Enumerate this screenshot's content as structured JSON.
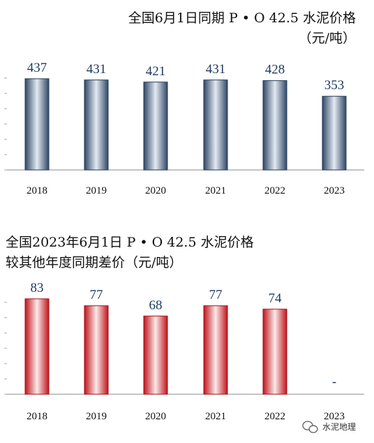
{
  "chart_data": [
    {
      "type": "bar",
      "title": "全国6月1日同期 P • O 42.5 水泥价格",
      "subtitle": "（元/吨）",
      "categories": [
        "2018",
        "2019",
        "2020",
        "2021",
        "2022",
        "2023"
      ],
      "values": [
        437,
        431,
        421,
        431,
        428,
        353
      ],
      "value_labels": [
        "437",
        "431",
        "421",
        "431",
        "428",
        "353"
      ],
      "ylim": [
        0,
        500
      ],
      "grid": false,
      "color": "#3b5372"
    },
    {
      "type": "bar",
      "title_line1": "全国2023年6月1日 P • O 42.5 水泥价格",
      "title_line2": "较其他年度同期差价（元/吨）",
      "categories": [
        "2018",
        "2019",
        "2020",
        "2021",
        "2022",
        "2023"
      ],
      "values": [
        83,
        77,
        68,
        77,
        74,
        null
      ],
      "value_labels": [
        "83",
        "77",
        "68",
        "77",
        "74",
        "-"
      ],
      "ylim": [
        0,
        100
      ],
      "grid": false,
      "color": "#c0141c"
    }
  ],
  "watermark": {
    "text": "水泥地理",
    "icon": "wechat-icon"
  }
}
